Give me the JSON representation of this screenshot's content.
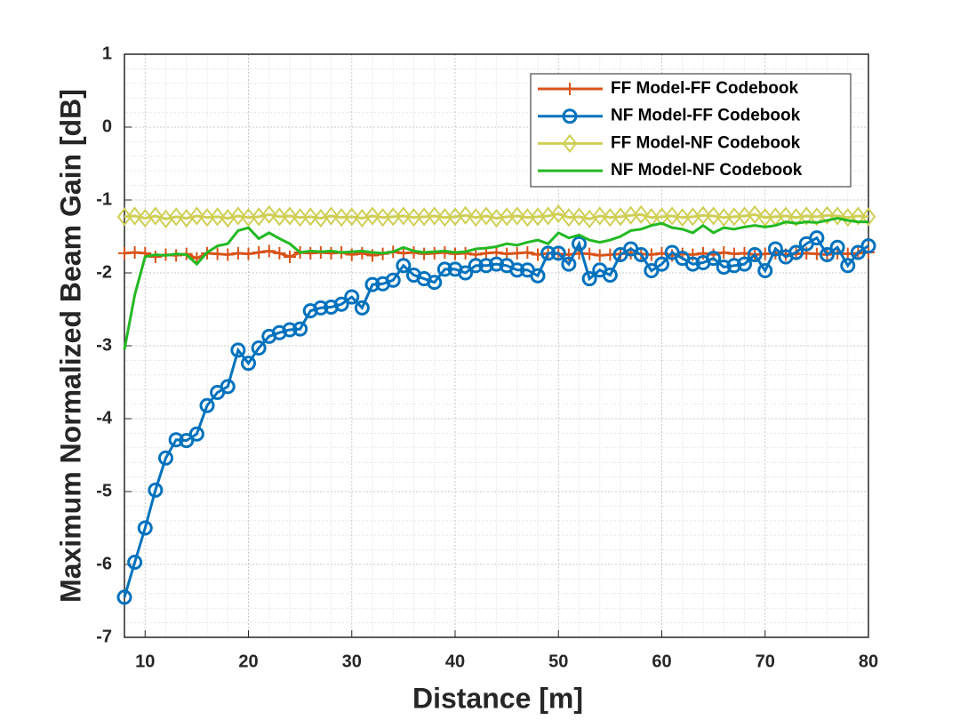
{
  "chart_data": {
    "type": "line",
    "xlabel": "Distance [m]",
    "ylabel": "Maximum Normalized Beam Gain [dB]",
    "xlim": [
      8,
      80
    ],
    "ylim": [
      -7,
      1
    ],
    "xticks": [
      10,
      20,
      30,
      40,
      50,
      60,
      70,
      80
    ],
    "yticks": [
      -7,
      -6,
      -5,
      -4,
      -3,
      -2,
      -1,
      0,
      1
    ],
    "grid": true,
    "minor_grid": true,
    "legend": "upper right",
    "x": [
      8,
      9,
      10,
      11,
      12,
      13,
      14,
      15,
      16,
      17,
      18,
      19,
      20,
      21,
      22,
      23,
      24,
      25,
      26,
      27,
      28,
      29,
      30,
      31,
      32,
      33,
      34,
      35,
      36,
      37,
      38,
      39,
      40,
      41,
      42,
      43,
      44,
      45,
      46,
      47,
      48,
      49,
      50,
      51,
      52,
      53,
      54,
      55,
      56,
      57,
      58,
      59,
      60,
      61,
      62,
      63,
      64,
      65,
      66,
      67,
      68,
      69,
      70,
      71,
      72,
      73,
      74,
      75,
      76,
      77,
      78,
      79,
      80
    ],
    "series": [
      {
        "name": "FF Model-FF Codebook",
        "color": "#D95319",
        "marker": "plus",
        "values": [
          -1.73,
          -1.72,
          -1.73,
          -1.78,
          -1.75,
          -1.76,
          -1.74,
          -1.8,
          -1.73,
          -1.74,
          -1.75,
          -1.73,
          -1.74,
          -1.72,
          -1.7,
          -1.73,
          -1.78,
          -1.72,
          -1.73,
          -1.72,
          -1.73,
          -1.72,
          -1.75,
          -1.73,
          -1.76,
          -1.74,
          -1.71,
          -1.73,
          -1.72,
          -1.74,
          -1.73,
          -1.72,
          -1.74,
          -1.73,
          -1.75,
          -1.73,
          -1.72,
          -1.74,
          -1.73,
          -1.72,
          -1.75,
          -1.73,
          -1.74,
          -1.75,
          -1.73,
          -1.74,
          -1.76,
          -1.75,
          -1.74,
          -1.73,
          -1.74,
          -1.75,
          -1.73,
          -1.76,
          -1.74,
          -1.75,
          -1.73,
          -1.75,
          -1.72,
          -1.74,
          -1.73,
          -1.75,
          -1.74,
          -1.73,
          -1.75,
          -1.74,
          -1.73,
          -1.74,
          -1.75,
          -1.73,
          -1.74,
          -1.73,
          -1.72
        ]
      },
      {
        "name": "NF Model-FF Codebook",
        "color": "#0072BD",
        "marker": "circle",
        "values": [
          -6.45,
          -5.97,
          -5.5,
          -4.98,
          -4.54,
          -4.29,
          -4.3,
          -4.21,
          -3.82,
          -3.64,
          -3.56,
          -3.06,
          -3.24,
          -3.03,
          -2.87,
          -2.82,
          -2.78,
          -2.77,
          -2.52,
          -2.48,
          -2.47,
          -2.43,
          -2.33,
          -2.48,
          -2.16,
          -2.15,
          -2.1,
          -1.9,
          -2.03,
          -2.08,
          -2.13,
          -1.95,
          -1.95,
          -2.0,
          -1.9,
          -1.9,
          -1.88,
          -1.9,
          -1.96,
          -1.96,
          -2.04,
          -1.73,
          -1.73,
          -1.88,
          -1.6,
          -2.08,
          -1.96,
          -2.03,
          -1.75,
          -1.67,
          -1.75,
          -1.97,
          -1.88,
          -1.72,
          -1.8,
          -1.88,
          -1.86,
          -1.8,
          -1.92,
          -1.9,
          -1.88,
          -1.75,
          -1.97,
          -1.67,
          -1.78,
          -1.72,
          -1.6,
          -1.52,
          -1.75,
          -1.65,
          -1.9,
          -1.72,
          -1.63
        ]
      },
      {
        "name": "FF Model-NF Codebook",
        "color": "#CFCF55",
        "marker": "diamond",
        "values": [
          -1.23,
          -1.22,
          -1.25,
          -1.22,
          -1.26,
          -1.23,
          -1.25,
          -1.22,
          -1.24,
          -1.23,
          -1.25,
          -1.22,
          -1.24,
          -1.23,
          -1.2,
          -1.23,
          -1.22,
          -1.24,
          -1.23,
          -1.25,
          -1.22,
          -1.24,
          -1.23,
          -1.25,
          -1.22,
          -1.24,
          -1.23,
          -1.22,
          -1.24,
          -1.23,
          -1.22,
          -1.24,
          -1.23,
          -1.21,
          -1.24,
          -1.22,
          -1.25,
          -1.23,
          -1.22,
          -1.24,
          -1.23,
          -1.22,
          -1.19,
          -1.24,
          -1.23,
          -1.26,
          -1.22,
          -1.24,
          -1.23,
          -1.21,
          -1.2,
          -1.24,
          -1.23,
          -1.22,
          -1.24,
          -1.23,
          -1.21,
          -1.22,
          -1.24,
          -1.23,
          -1.22,
          -1.2,
          -1.24,
          -1.23,
          -1.22,
          -1.24,
          -1.22,
          -1.23,
          -1.21,
          -1.22,
          -1.24,
          -1.22,
          -1.23
        ]
      },
      {
        "name": "NF Model-NF Codebook",
        "color": "#22B922",
        "marker": "none",
        "values": [
          -3.05,
          -2.3,
          -1.78,
          -1.75,
          -1.76,
          -1.74,
          -1.75,
          -1.88,
          -1.72,
          -1.63,
          -1.6,
          -1.42,
          -1.38,
          -1.53,
          -1.45,
          -1.53,
          -1.6,
          -1.72,
          -1.7,
          -1.71,
          -1.7,
          -1.72,
          -1.71,
          -1.7,
          -1.72,
          -1.73,
          -1.71,
          -1.65,
          -1.7,
          -1.72,
          -1.71,
          -1.7,
          -1.72,
          -1.71,
          -1.67,
          -1.66,
          -1.64,
          -1.6,
          -1.62,
          -1.58,
          -1.55,
          -1.6,
          -1.45,
          -1.52,
          -1.48,
          -1.55,
          -1.58,
          -1.55,
          -1.5,
          -1.42,
          -1.4,
          -1.35,
          -1.32,
          -1.38,
          -1.4,
          -1.45,
          -1.35,
          -1.45,
          -1.38,
          -1.4,
          -1.37,
          -1.35,
          -1.37,
          -1.35,
          -1.3,
          -1.32,
          -1.3,
          -1.31,
          -1.28,
          -1.25,
          -1.28,
          -1.3,
          -1.3
        ]
      }
    ]
  }
}
